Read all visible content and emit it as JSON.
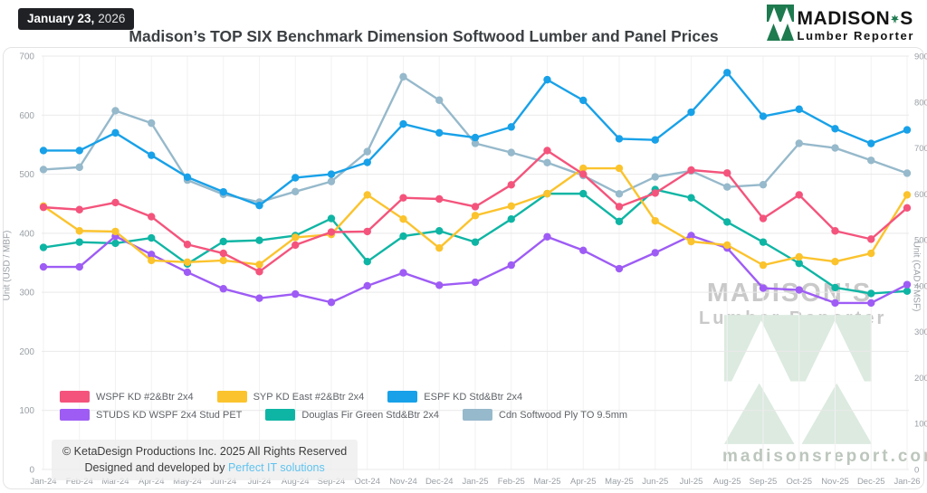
{
  "header": {
    "date_badge": {
      "date": "January 23,",
      "year": "2026"
    },
    "title": "Madison’s TOP SIX Benchmark Dimension Softwood Lumber and Panel Prices",
    "logo": {
      "brand": "MADISON",
      "brand_suffix": "S",
      "subtitle": "Lumber Reporter"
    }
  },
  "chart_data": {
    "type": "line",
    "x": [
      "Jan-24",
      "Feb-24",
      "Mar-24",
      "Apr-24",
      "May-24",
      "Jun-24",
      "Jul-24",
      "Aug-24",
      "Sep-24",
      "Oct-24",
      "Nov-24",
      "Dec-24",
      "Jan-25",
      "Feb-25",
      "Mar-25",
      "Apr-25",
      "May-25",
      "Jun-25",
      "Jul-25",
      "Aug-25",
      "Sep-25",
      "Oct-25",
      "Nov-25",
      "Dec-25",
      "Jan-26"
    ],
    "left_axis": {
      "label": "Unit (USD / MBF)",
      "min": 0,
      "max": 700,
      "step": 100
    },
    "right_axis": {
      "label": "Unit (CAD / MSF)",
      "min": 0,
      "max": 900,
      "step": 100
    },
    "grid": true,
    "legend_position": "inside-bottom-left",
    "series": [
      {
        "name": "WSPF KD #2&Btr 2x4",
        "color": "#F4547C",
        "axis": "left",
        "values": [
          444,
          440,
          452,
          428,
          381,
          366,
          335,
          380,
          402,
          403,
          460,
          458,
          445,
          482,
          540,
          500,
          445,
          468,
          507,
          502,
          425,
          465,
          404,
          390,
          443
        ]
      },
      {
        "name": "SYP KD East #2&Btr 2x4",
        "color": "#FBC32D",
        "axis": "left",
        "values": [
          446,
          404,
          403,
          354,
          351,
          354,
          347,
          393,
          398,
          465,
          424,
          375,
          430,
          446,
          467,
          510,
          510,
          421,
          386,
          380,
          346,
          360,
          352,
          366,
          465
        ]
      },
      {
        "name": "ESPF KD Std&Btr 2x4",
        "color": "#18A1E8",
        "axis": "left",
        "values": [
          540,
          540,
          570,
          532,
          495,
          470,
          447,
          494,
          500,
          520,
          585,
          570,
          562,
          580,
          660,
          625,
          560,
          558,
          605,
          672,
          598,
          610,
          577,
          552,
          575
        ]
      },
      {
        "name": "STUDS KD WSPF 2x4 Stud PET",
        "color": "#9E5CF5",
        "axis": "left",
        "values": [
          343,
          343,
          395,
          364,
          334,
          306,
          290,
          297,
          283,
          311,
          333,
          312,
          317,
          346,
          394,
          371,
          340,
          367,
          396,
          375,
          307,
          304,
          282,
          282,
          313
        ]
      },
      {
        "name": "Douglas Fir Green Std&Btr 2x4",
        "color": "#0FB5A4",
        "axis": "left",
        "values": [
          376,
          385,
          383,
          392,
          348,
          386,
          388,
          396,
          425,
          352,
          395,
          404,
          385,
          424,
          467,
          467,
          420,
          474,
          460,
          419,
          385,
          349,
          308,
          298,
          302
        ]
      },
      {
        "name": "Cdn Softwood Ply TO 9.5mm",
        "color": "#96B9CB",
        "axis": "right",
        "values": [
          653,
          658,
          781,
          754,
          630,
          599,
          582,
          605,
          627,
          692,
          855,
          804,
          710,
          690,
          668,
          640,
          600,
          637,
          650,
          615,
          620,
          710,
          700,
          673,
          645
        ]
      }
    ]
  },
  "watermark": {
    "brand": "MADISON’S",
    "subtitle": "Lumber Reporter",
    "website": "madisonsreport.com"
  },
  "footer": {
    "copyright": "© KetaDesign Productions Inc. 2025 All Rights Reserved",
    "designed_by": "Designed and developed by ",
    "link_label": "Perfect IT solutions"
  },
  "colors": {
    "brand_green": "#1E7A4F",
    "watermark_green": "#DCEAE0",
    "badge_bg": "#1F2125",
    "link_blue": "#5FC3EF",
    "grid_line": "#E9E9E9",
    "tick_text": "#9AA0A6"
  }
}
